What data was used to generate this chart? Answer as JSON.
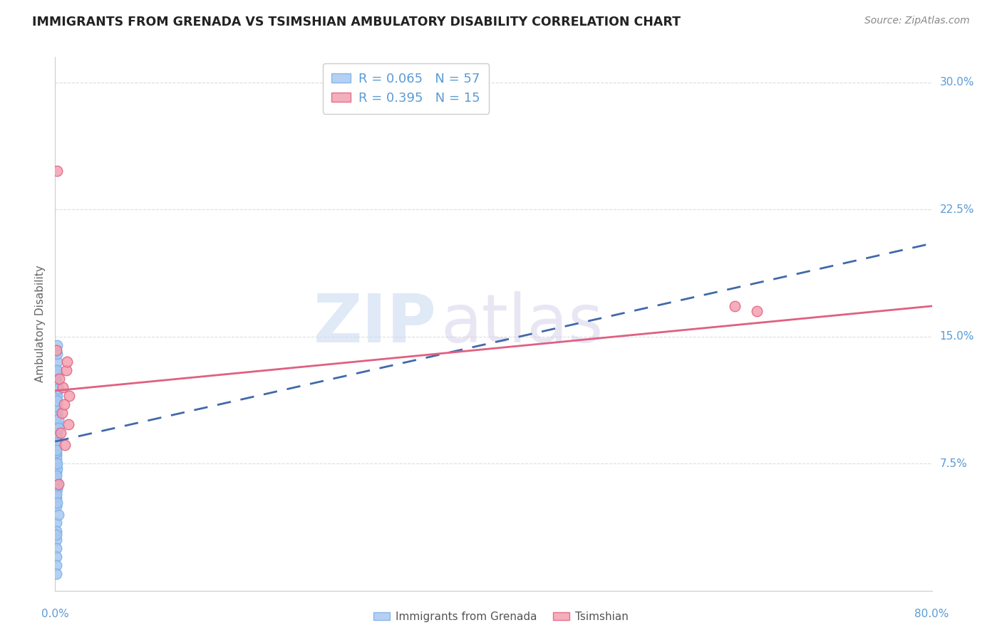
{
  "title": "IMMIGRANTS FROM GRENADA VS TSIMSHIAN AMBULATORY DISABILITY CORRELATION CHART",
  "source": "Source: ZipAtlas.com",
  "ylabel": "Ambulatory Disability",
  "yticks": [
    0.0,
    0.075,
    0.15,
    0.225,
    0.3
  ],
  "ytick_labels": [
    "",
    "7.5%",
    "15.0%",
    "22.5%",
    "30.0%"
  ],
  "xlim": [
    0.0,
    0.8
  ],
  "ylim": [
    0.0,
    0.315
  ],
  "legend_blue_R": "0.065",
  "legend_blue_N": "57",
  "legend_pink_R": "0.395",
  "legend_pink_N": "15",
  "blue_color": "#a8c8f0",
  "blue_edge_color": "#7ab0e8",
  "pink_color": "#f4a0b0",
  "pink_edge_color": "#e06080",
  "trendline_blue_color": "#4169aa",
  "trendline_pink_color": "#e06080",
  "blue_scatter_x": [
    0.001,
    0.001,
    0.002,
    0.001,
    0.002,
    0.001,
    0.001,
    0.002,
    0.001,
    0.001,
    0.002,
    0.001,
    0.001,
    0.002,
    0.001,
    0.001,
    0.002,
    0.001,
    0.001,
    0.002,
    0.001,
    0.001,
    0.002,
    0.001,
    0.001,
    0.002,
    0.001,
    0.001,
    0.002,
    0.001,
    0.001,
    0.002,
    0.001,
    0.001,
    0.002,
    0.001,
    0.003,
    0.001,
    0.001,
    0.002,
    0.001,
    0.001,
    0.001,
    0.002,
    0.003,
    0.001,
    0.002,
    0.003,
    0.001,
    0.002,
    0.001,
    0.003,
    0.002,
    0.001,
    0.002,
    0.001,
    0.002
  ],
  "blue_scatter_y": [
    0.13,
    0.125,
    0.135,
    0.1,
    0.095,
    0.09,
    0.115,
    0.12,
    0.085,
    0.08,
    0.11,
    0.075,
    0.07,
    0.105,
    0.065,
    0.125,
    0.118,
    0.088,
    0.078,
    0.06,
    0.092,
    0.095,
    0.14,
    0.097,
    0.055,
    0.115,
    0.082,
    0.05,
    0.072,
    0.108,
    0.04,
    0.098,
    0.086,
    0.035,
    0.112,
    0.103,
    0.045,
    0.128,
    0.068,
    0.093,
    0.057,
    0.03,
    0.025,
    0.122,
    0.101,
    0.02,
    0.075,
    0.119,
    0.083,
    0.062,
    0.015,
    0.096,
    0.13,
    0.01,
    0.052,
    0.033,
    0.145
  ],
  "pink_scatter_x": [
    0.002,
    0.001,
    0.013,
    0.007,
    0.006,
    0.008,
    0.004,
    0.005,
    0.009,
    0.01,
    0.62,
    0.64,
    0.003,
    0.011,
    0.012
  ],
  "pink_scatter_y": [
    0.248,
    0.142,
    0.115,
    0.12,
    0.105,
    0.11,
    0.125,
    0.093,
    0.086,
    0.13,
    0.168,
    0.165,
    0.063,
    0.135,
    0.098
  ],
  "watermark_zip": "ZIP",
  "watermark_atlas": "atlas",
  "background_color": "#ffffff",
  "grid_color": "#dddddd",
  "label_color": "#5b9bd5",
  "axis_color": "#cccccc"
}
